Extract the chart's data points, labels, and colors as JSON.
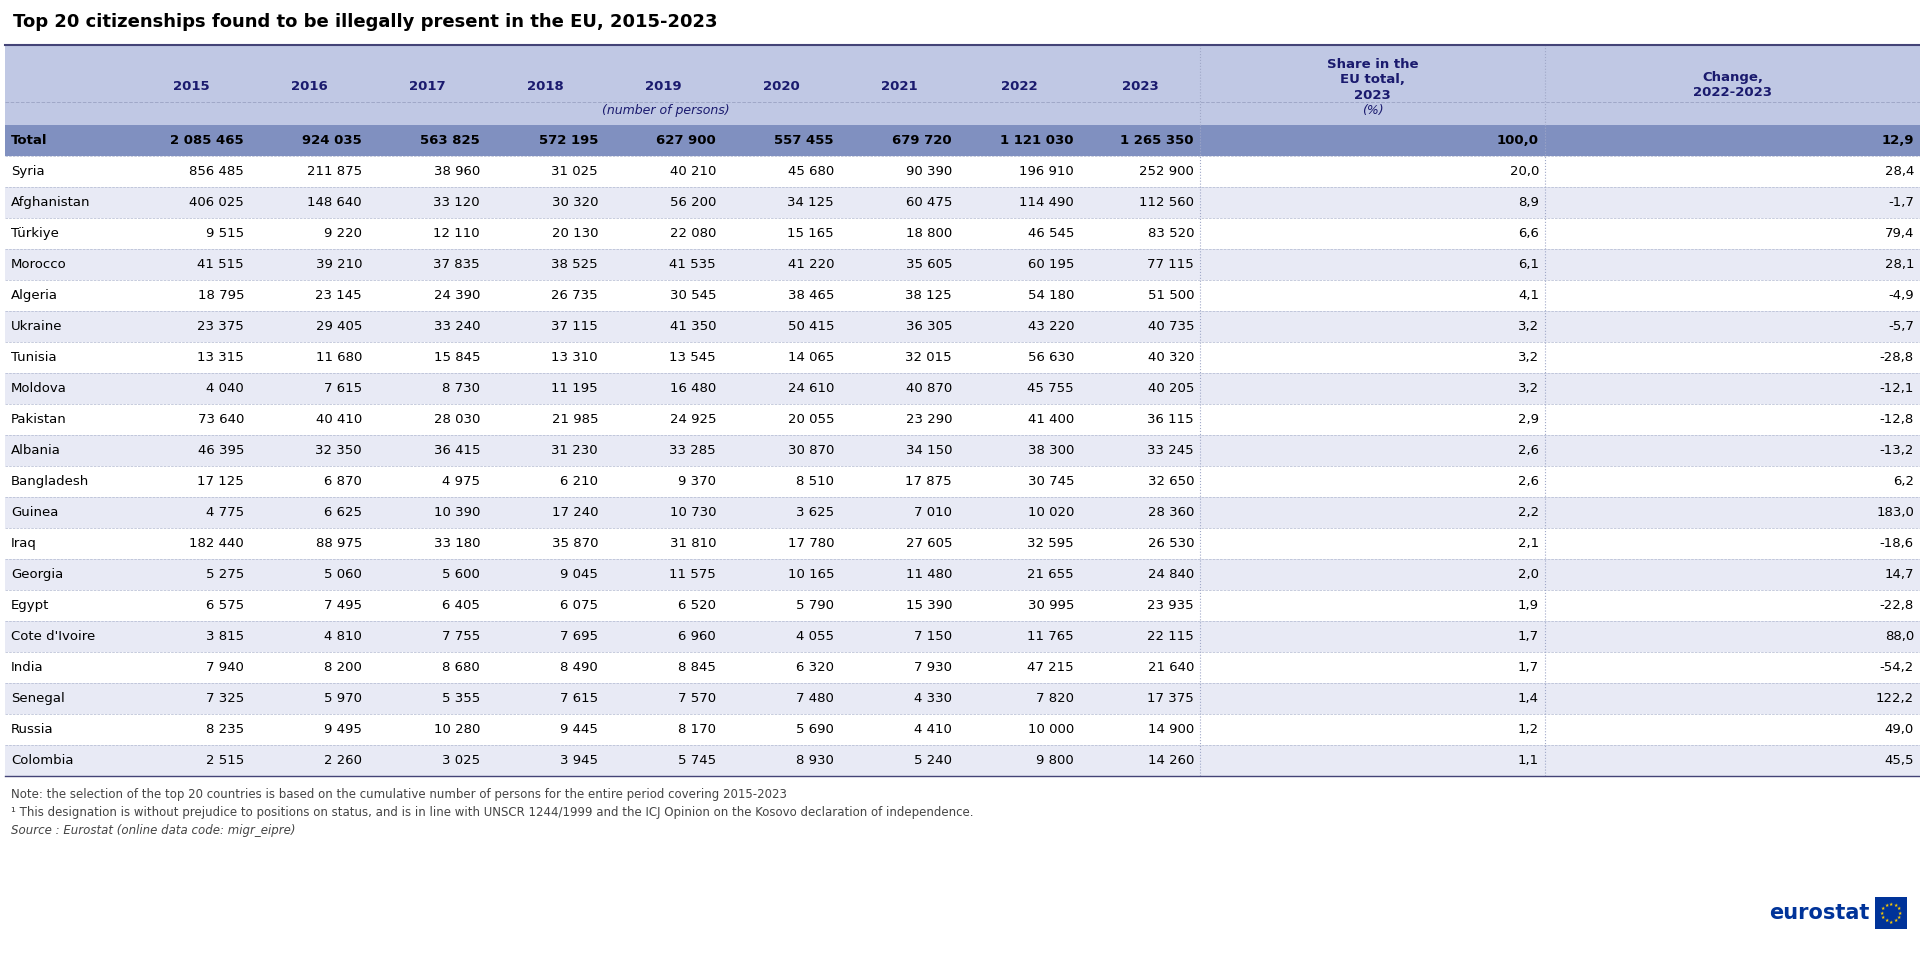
{
  "title": "Top 20 citizenships found to be illegally present in the EU, 2015-2023",
  "col_headers": [
    "",
    "2015",
    "2016",
    "2017",
    "2018",
    "2019",
    "2020",
    "2021",
    "2022",
    "2023",
    "Share in the\nEU total,\n2023",
    "Change,\n2022-2023"
  ],
  "rows": [
    [
      "Total",
      "2 085 465",
      "924 035",
      "563 825",
      "572 195",
      "627 900",
      "557 455",
      "679 720",
      "1 121 030",
      "1 265 350",
      "100,0",
      "12,9"
    ],
    [
      "Syria",
      "856 485",
      "211 875",
      "38 960",
      "31 025",
      "40 210",
      "45 680",
      "90 390",
      "196 910",
      "252 900",
      "20,0",
      "28,4"
    ],
    [
      "Afghanistan",
      "406 025",
      "148 640",
      "33 120",
      "30 320",
      "56 200",
      "34 125",
      "60 475",
      "114 490",
      "112 560",
      "8,9",
      "-1,7"
    ],
    [
      "Türkiye",
      "9 515",
      "9 220",
      "12 110",
      "20 130",
      "22 080",
      "15 165",
      "18 800",
      "46 545",
      "83 520",
      "6,6",
      "79,4"
    ],
    [
      "Morocco",
      "41 515",
      "39 210",
      "37 835",
      "38 525",
      "41 535",
      "41 220",
      "35 605",
      "60 195",
      "77 115",
      "6,1",
      "28,1"
    ],
    [
      "Algeria",
      "18 795",
      "23 145",
      "24 390",
      "26 735",
      "30 545",
      "38 465",
      "38 125",
      "54 180",
      "51 500",
      "4,1",
      "-4,9"
    ],
    [
      "Ukraine",
      "23 375",
      "29 405",
      "33 240",
      "37 115",
      "41 350",
      "50 415",
      "36 305",
      "43 220",
      "40 735",
      "3,2",
      "-5,7"
    ],
    [
      "Tunisia",
      "13 315",
      "11 680",
      "15 845",
      "13 310",
      "13 545",
      "14 065",
      "32 015",
      "56 630",
      "40 320",
      "3,2",
      "-28,8"
    ],
    [
      "Moldova",
      "4 040",
      "7 615",
      "8 730",
      "11 195",
      "16 480",
      "24 610",
      "40 870",
      "45 755",
      "40 205",
      "3,2",
      "-12,1"
    ],
    [
      "Pakistan",
      "73 640",
      "40 410",
      "28 030",
      "21 985",
      "24 925",
      "20 055",
      "23 290",
      "41 400",
      "36 115",
      "2,9",
      "-12,8"
    ],
    [
      "Albania",
      "46 395",
      "32 350",
      "36 415",
      "31 230",
      "33 285",
      "30 870",
      "34 150",
      "38 300",
      "33 245",
      "2,6",
      "-13,2"
    ],
    [
      "Bangladesh",
      "17 125",
      "6 870",
      "4 975",
      "6 210",
      "9 370",
      "8 510",
      "17 875",
      "30 745",
      "32 650",
      "2,6",
      "6,2"
    ],
    [
      "Guinea",
      "4 775",
      "6 625",
      "10 390",
      "17 240",
      "10 730",
      "3 625",
      "7 010",
      "10 020",
      "28 360",
      "2,2",
      "183,0"
    ],
    [
      "Iraq",
      "182 440",
      "88 975",
      "33 180",
      "35 870",
      "31 810",
      "17 780",
      "27 605",
      "32 595",
      "26 530",
      "2,1",
      "-18,6"
    ],
    [
      "Georgia",
      "5 275",
      "5 060",
      "5 600",
      "9 045",
      "11 575",
      "10 165",
      "11 480",
      "21 655",
      "24 840",
      "2,0",
      "14,7"
    ],
    [
      "Egypt",
      "6 575",
      "7 495",
      "6 405",
      "6 075",
      "6 520",
      "5 790",
      "15 390",
      "30 995",
      "23 935",
      "1,9",
      "-22,8"
    ],
    [
      "Cote d'Ivoire",
      "3 815",
      "4 810",
      "7 755",
      "7 695",
      "6 960",
      "4 055",
      "7 150",
      "11 765",
      "22 115",
      "1,7",
      "88,0"
    ],
    [
      "India",
      "7 940",
      "8 200",
      "8 680",
      "8 490",
      "8 845",
      "6 320",
      "7 930",
      "47 215",
      "21 640",
      "1,7",
      "-54,2"
    ],
    [
      "Senegal",
      "7 325",
      "5 970",
      "5 355",
      "7 615",
      "7 570",
      "7 480",
      "4 330",
      "7 820",
      "17 375",
      "1,4",
      "122,2"
    ],
    [
      "Russia",
      "8 235",
      "9 495",
      "10 280",
      "9 445",
      "8 170",
      "5 690",
      "4 410",
      "10 000",
      "14 900",
      "1,2",
      "49,0"
    ],
    [
      "Colombia",
      "2 515",
      "2 260",
      "3 025",
      "3 945",
      "5 745",
      "8 930",
      "5 240",
      "9 800",
      "14 260",
      "1,1",
      "45,5"
    ]
  ],
  "note1": "Note: the selection of the top 20 countries is based on the cumulative number of persons for the entire period covering 2015-2023",
  "note2": "¹ This designation is without prejudice to positions on status, and is in line with UNSCR 1244/1999 and the ICJ Opinion on the Kosovo declaration of independence.",
  "source": "Source : Eurostat (online data code: migr_eipre)",
  "header_bg": "#c0c8e4",
  "total_row_bg": "#8090c0",
  "alt_row_bg": "#e8eaf5",
  "white_row_bg": "#ffffff",
  "sep_line_color": "#a0a8c8",
  "header_text_color": "#1a1a6e",
  "data_text_color": "#000000",
  "title_color": "#000000",
  "note_color": "#444444",
  "border_color": "#444477",
  "eurostat_blue": "#003399",
  "eurostat_yellow": "#ffcc00"
}
